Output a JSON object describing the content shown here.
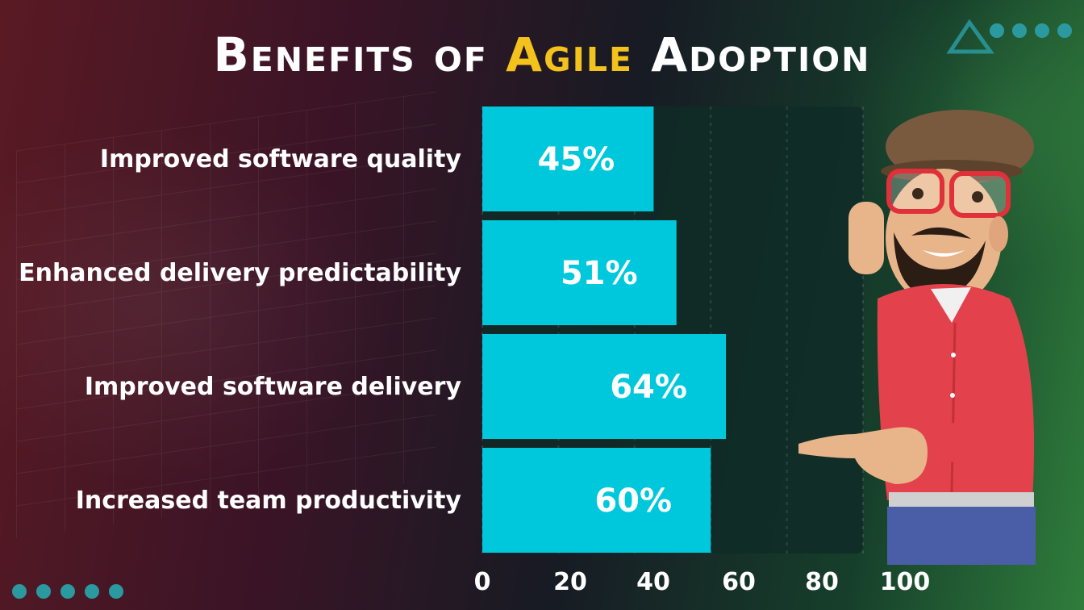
{
  "title": {
    "prefix": "Benefits of",
    "accent": "Agile",
    "suffix": "Adoption"
  },
  "colors": {
    "bar": "#00c8dc",
    "track": "#0f2b27",
    "title_accent": "#f4c21c",
    "text": "#ffffff",
    "dots": "#2a9aa0"
  },
  "icons": {
    "top_right": "triangle-dots-icon",
    "bottom_left": "dots-icon",
    "mascot": "cartoon-man-pointing"
  },
  "chart_data": {
    "type": "bar",
    "orientation": "horizontal",
    "title": "Benefits of Agile Adoption",
    "categories": [
      "Improved software quality",
      "Enhanced delivery predictability",
      "Improved software delivery",
      "Increased team productivity"
    ],
    "values": [
      45,
      51,
      64,
      60
    ],
    "value_labels": [
      "45%",
      "51%",
      "64%",
      "60%"
    ],
    "xlim": [
      0,
      100
    ],
    "xticks": [
      "0",
      "20",
      "40",
      "60",
      "80",
      "100"
    ],
    "grid": true,
    "legend": "none"
  }
}
